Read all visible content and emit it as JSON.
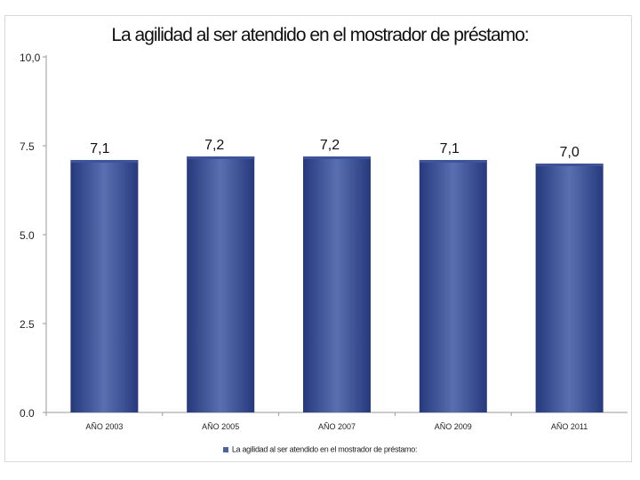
{
  "chart_data": {
    "type": "bar",
    "title": "La agilidad al ser atendido en el mostrador de préstamo:",
    "categories": [
      "AÑO 2003",
      "AÑO 2005",
      "AÑO 2007",
      "AÑO 2009",
      "AÑO 2011"
    ],
    "values": [
      7.1,
      7.2,
      7.2,
      7.1,
      7.0
    ],
    "value_labels": [
      "7,1",
      "7,2",
      "7,2",
      "7,1",
      "7,0"
    ],
    "y_ticks": [
      "0.0",
      "2.5",
      "5.0",
      "7.5",
      "10,0"
    ],
    "y_tick_values": [
      0,
      2.5,
      5.0,
      7.5,
      10.0
    ],
    "ylim": [
      0,
      10
    ],
    "xlabel": "",
    "ylabel": "",
    "legend": {
      "position": "bottom",
      "label": "La agilidad al ser atendido en el mostrador de préstamo:"
    },
    "colors": {
      "bar_center": "#5a6fb0",
      "bar_edge": "#25397c",
      "bar_top": "#3c54a0",
      "axis": "#999999"
    }
  }
}
